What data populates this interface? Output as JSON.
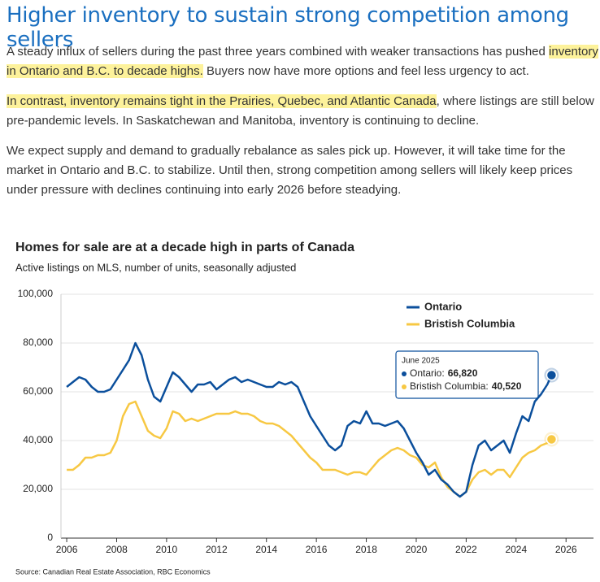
{
  "title": "Higher inventory to sustain strong competition among sellers",
  "paragraphs": [
    [
      {
        "text": "A steady influx of sellers during the past three years combined with weaker transactions has pushed ",
        "highlight": false
      },
      {
        "text": "inventory in Ontario and B.C. to decade highs.",
        "highlight": true
      },
      {
        "text": " Buyers now have more options and feel less urgency to act.",
        "highlight": false
      }
    ],
    [
      {
        "text": "In contrast, inventory remains tight in the Prairies, Quebec, and Atlantic Canada",
        "highlight": true
      },
      {
        "text": ", where listings are still below pre-pandemic levels. In Saskatchewan and Manitoba, inventory is continuing to decline.",
        "highlight": false
      }
    ],
    [
      {
        "text": "We expect supply and demand to gradually rebalance as sales pick up. However, it will take time for the market in Ontario and B.C. to stabilize. Until then, strong competition among sellers will likely keep prices under pressure with declines continuing into early 2026 before steadying.",
        "highlight": false
      }
    ]
  ],
  "chart_data": {
    "type": "line",
    "title": "Homes for sale are at a decade high in parts of Canada",
    "subtitle": "Active listings on MLS, number of units, seasonally adjusted",
    "source": "Source: Canadian Real Estate Association, RBC Economics",
    "xlim": [
      2005.77,
      2027.1
    ],
    "xticks": [
      2006,
      2008,
      2010,
      2012,
      2014,
      2016,
      2018,
      2020,
      2022,
      2024,
      2026
    ],
    "ylim": [
      0,
      100000
    ],
    "yticks": [
      0,
      {
        "value": 20000,
        "label": "20,000"
      },
      {
        "value": 40000,
        "label": "40,000"
      },
      {
        "value": 60000,
        "label": "60,000"
      },
      {
        "value": 80000,
        "label": "80,000"
      },
      {
        "value": 100000,
        "label": "100,000"
      }
    ],
    "grid": true,
    "x": [
      2006,
      2006.25,
      2006.5,
      2006.75,
      2007,
      2007.25,
      2007.5,
      2007.75,
      2008,
      2008.25,
      2008.5,
      2008.75,
      2009,
      2009.25,
      2009.5,
      2009.75,
      2010,
      2010.25,
      2010.5,
      2010.75,
      2011,
      2011.25,
      2011.5,
      2011.75,
      2012,
      2012.25,
      2012.5,
      2012.75,
      2013,
      2013.25,
      2013.5,
      2013.75,
      2014,
      2014.25,
      2014.5,
      2014.75,
      2015,
      2015.25,
      2015.5,
      2015.75,
      2016,
      2016.25,
      2016.5,
      2016.75,
      2017,
      2017.25,
      2017.5,
      2017.75,
      2018,
      2018.25,
      2018.5,
      2018.75,
      2019,
      2019.25,
      2019.5,
      2019.75,
      2020,
      2020.25,
      2020.5,
      2020.75,
      2021,
      2021.25,
      2021.5,
      2021.75,
      2022,
      2022.25,
      2022.5,
      2022.75,
      2023,
      2023.25,
      2023.5,
      2023.75,
      2024,
      2024.25,
      2024.5,
      2024.75,
      2025,
      2025.25,
      2025.42
    ],
    "series": [
      {
        "name": "Ontario",
        "color": "#0b4f9c",
        "values": [
          62000,
          64000,
          66000,
          65000,
          62000,
          60000,
          60000,
          61000,
          65000,
          69000,
          73000,
          80000,
          75000,
          65000,
          58000,
          56000,
          62000,
          68000,
          66000,
          63000,
          60000,
          63000,
          63000,
          64000,
          61000,
          63000,
          65000,
          66000,
          64000,
          65000,
          64000,
          63000,
          62000,
          62000,
          64000,
          63000,
          64000,
          62000,
          56000,
          50000,
          46000,
          42000,
          38000,
          36000,
          38000,
          46000,
          48000,
          47000,
          52000,
          47000,
          47000,
          46000,
          47000,
          48000,
          45000,
          40000,
          35000,
          31000,
          26000,
          28000,
          24000,
          22000,
          19000,
          17000,
          19000,
          30000,
          38000,
          40000,
          36000,
          38000,
          40000,
          35000,
          43000,
          50000,
          48000,
          56000,
          59000,
          63000,
          66820
        ]
      },
      {
        "name": "Bristish Columbia",
        "color": "#f7c843",
        "values": [
          28000,
          28000,
          30000,
          33000,
          33000,
          34000,
          34000,
          35000,
          40000,
          50000,
          55000,
          56000,
          50000,
          44000,
          42000,
          41000,
          45000,
          52000,
          51000,
          48000,
          49000,
          48000,
          49000,
          50000,
          51000,
          51000,
          51000,
          52000,
          51000,
          51000,
          50000,
          48000,
          47000,
          47000,
          46000,
          44000,
          42000,
          39000,
          36000,
          33000,
          31000,
          28000,
          28000,
          28000,
          27000,
          26000,
          27000,
          27000,
          26000,
          29000,
          32000,
          34000,
          36000,
          37000,
          36000,
          34000,
          33000,
          30000,
          29000,
          31000,
          25000,
          21000,
          19000,
          17000,
          19000,
          24000,
          27000,
          28000,
          26000,
          28000,
          28000,
          25000,
          29000,
          33000,
          35000,
          36000,
          38000,
          39000,
          40520
        ]
      }
    ],
    "legend": "top-right",
    "tooltip": {
      "title": "June 2025",
      "labels": [
        "Ontario:",
        "Bristish Columbia:"
      ],
      "values": [
        66820,
        40520
      ],
      "value_labels": [
        "66,820",
        "40,520"
      ]
    }
  }
}
